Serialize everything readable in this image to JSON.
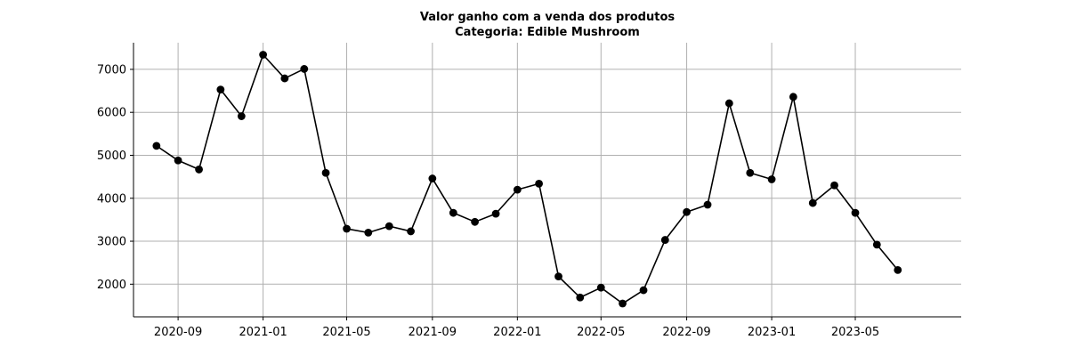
{
  "chart_data": {
    "type": "line",
    "title": "Valor ganho com a venda dos produtos",
    "subtitle": "Categoria: Edible Mushroom",
    "xlabel": "",
    "ylabel": "",
    "grid": true,
    "legend": "none",
    "xlim": [
      "2020-06-29",
      "2023-09-30"
    ],
    "ylim": [
      1240,
      7620
    ],
    "x_ticks": [
      "2020-09",
      "2021-01",
      "2021-05",
      "2021-09",
      "2022-01",
      "2022-05",
      "2022-09",
      "2023-01",
      "2023-05"
    ],
    "y_ticks": [
      2000,
      3000,
      4000,
      5000,
      6000,
      7000
    ],
    "series": [
      {
        "color": "#000000",
        "marker": "circle",
        "points": [
          {
            "x": "2020-08-01",
            "y": 5220
          },
          {
            "x": "2020-09-01",
            "y": 4880
          },
          {
            "x": "2020-10-01",
            "y": 4670
          },
          {
            "x": "2020-11-01",
            "y": 6530
          },
          {
            "x": "2020-12-01",
            "y": 5910
          },
          {
            "x": "2021-01-01",
            "y": 7340
          },
          {
            "x": "2021-02-01",
            "y": 6790
          },
          {
            "x": "2021-03-01",
            "y": 7010
          },
          {
            "x": "2021-04-01",
            "y": 4590
          },
          {
            "x": "2021-05-01",
            "y": 3290
          },
          {
            "x": "2021-06-01",
            "y": 3200
          },
          {
            "x": "2021-07-01",
            "y": 3350
          },
          {
            "x": "2021-08-01",
            "y": 3230
          },
          {
            "x": "2021-09-01",
            "y": 4460
          },
          {
            "x": "2021-10-01",
            "y": 3660
          },
          {
            "x": "2021-11-01",
            "y": 3450
          },
          {
            "x": "2021-12-01",
            "y": 3640
          },
          {
            "x": "2022-01-01",
            "y": 4200
          },
          {
            "x": "2022-02-01",
            "y": 4340
          },
          {
            "x": "2022-03-01",
            "y": 2180
          },
          {
            "x": "2022-04-01",
            "y": 1690
          },
          {
            "x": "2022-05-01",
            "y": 1920
          },
          {
            "x": "2022-06-01",
            "y": 1550
          },
          {
            "x": "2022-07-01",
            "y": 1860
          },
          {
            "x": "2022-08-01",
            "y": 3030
          },
          {
            "x": "2022-09-01",
            "y": 3680
          },
          {
            "x": "2022-10-01",
            "y": 3850
          },
          {
            "x": "2022-11-01",
            "y": 6210
          },
          {
            "x": "2022-12-01",
            "y": 4590
          },
          {
            "x": "2023-01-01",
            "y": 4440
          },
          {
            "x": "2023-02-01",
            "y": 6360
          },
          {
            "x": "2023-03-01",
            "y": 3890
          },
          {
            "x": "2023-04-01",
            "y": 4300
          },
          {
            "x": "2023-05-01",
            "y": 3660
          },
          {
            "x": "2023-06-01",
            "y": 2920
          },
          {
            "x": "2023-07-01",
            "y": 2330
          }
        ]
      }
    ]
  },
  "colors": {
    "background": "#ffffff",
    "grid": "#b0b0b0",
    "line": "#000000",
    "axis": "#000000"
  }
}
